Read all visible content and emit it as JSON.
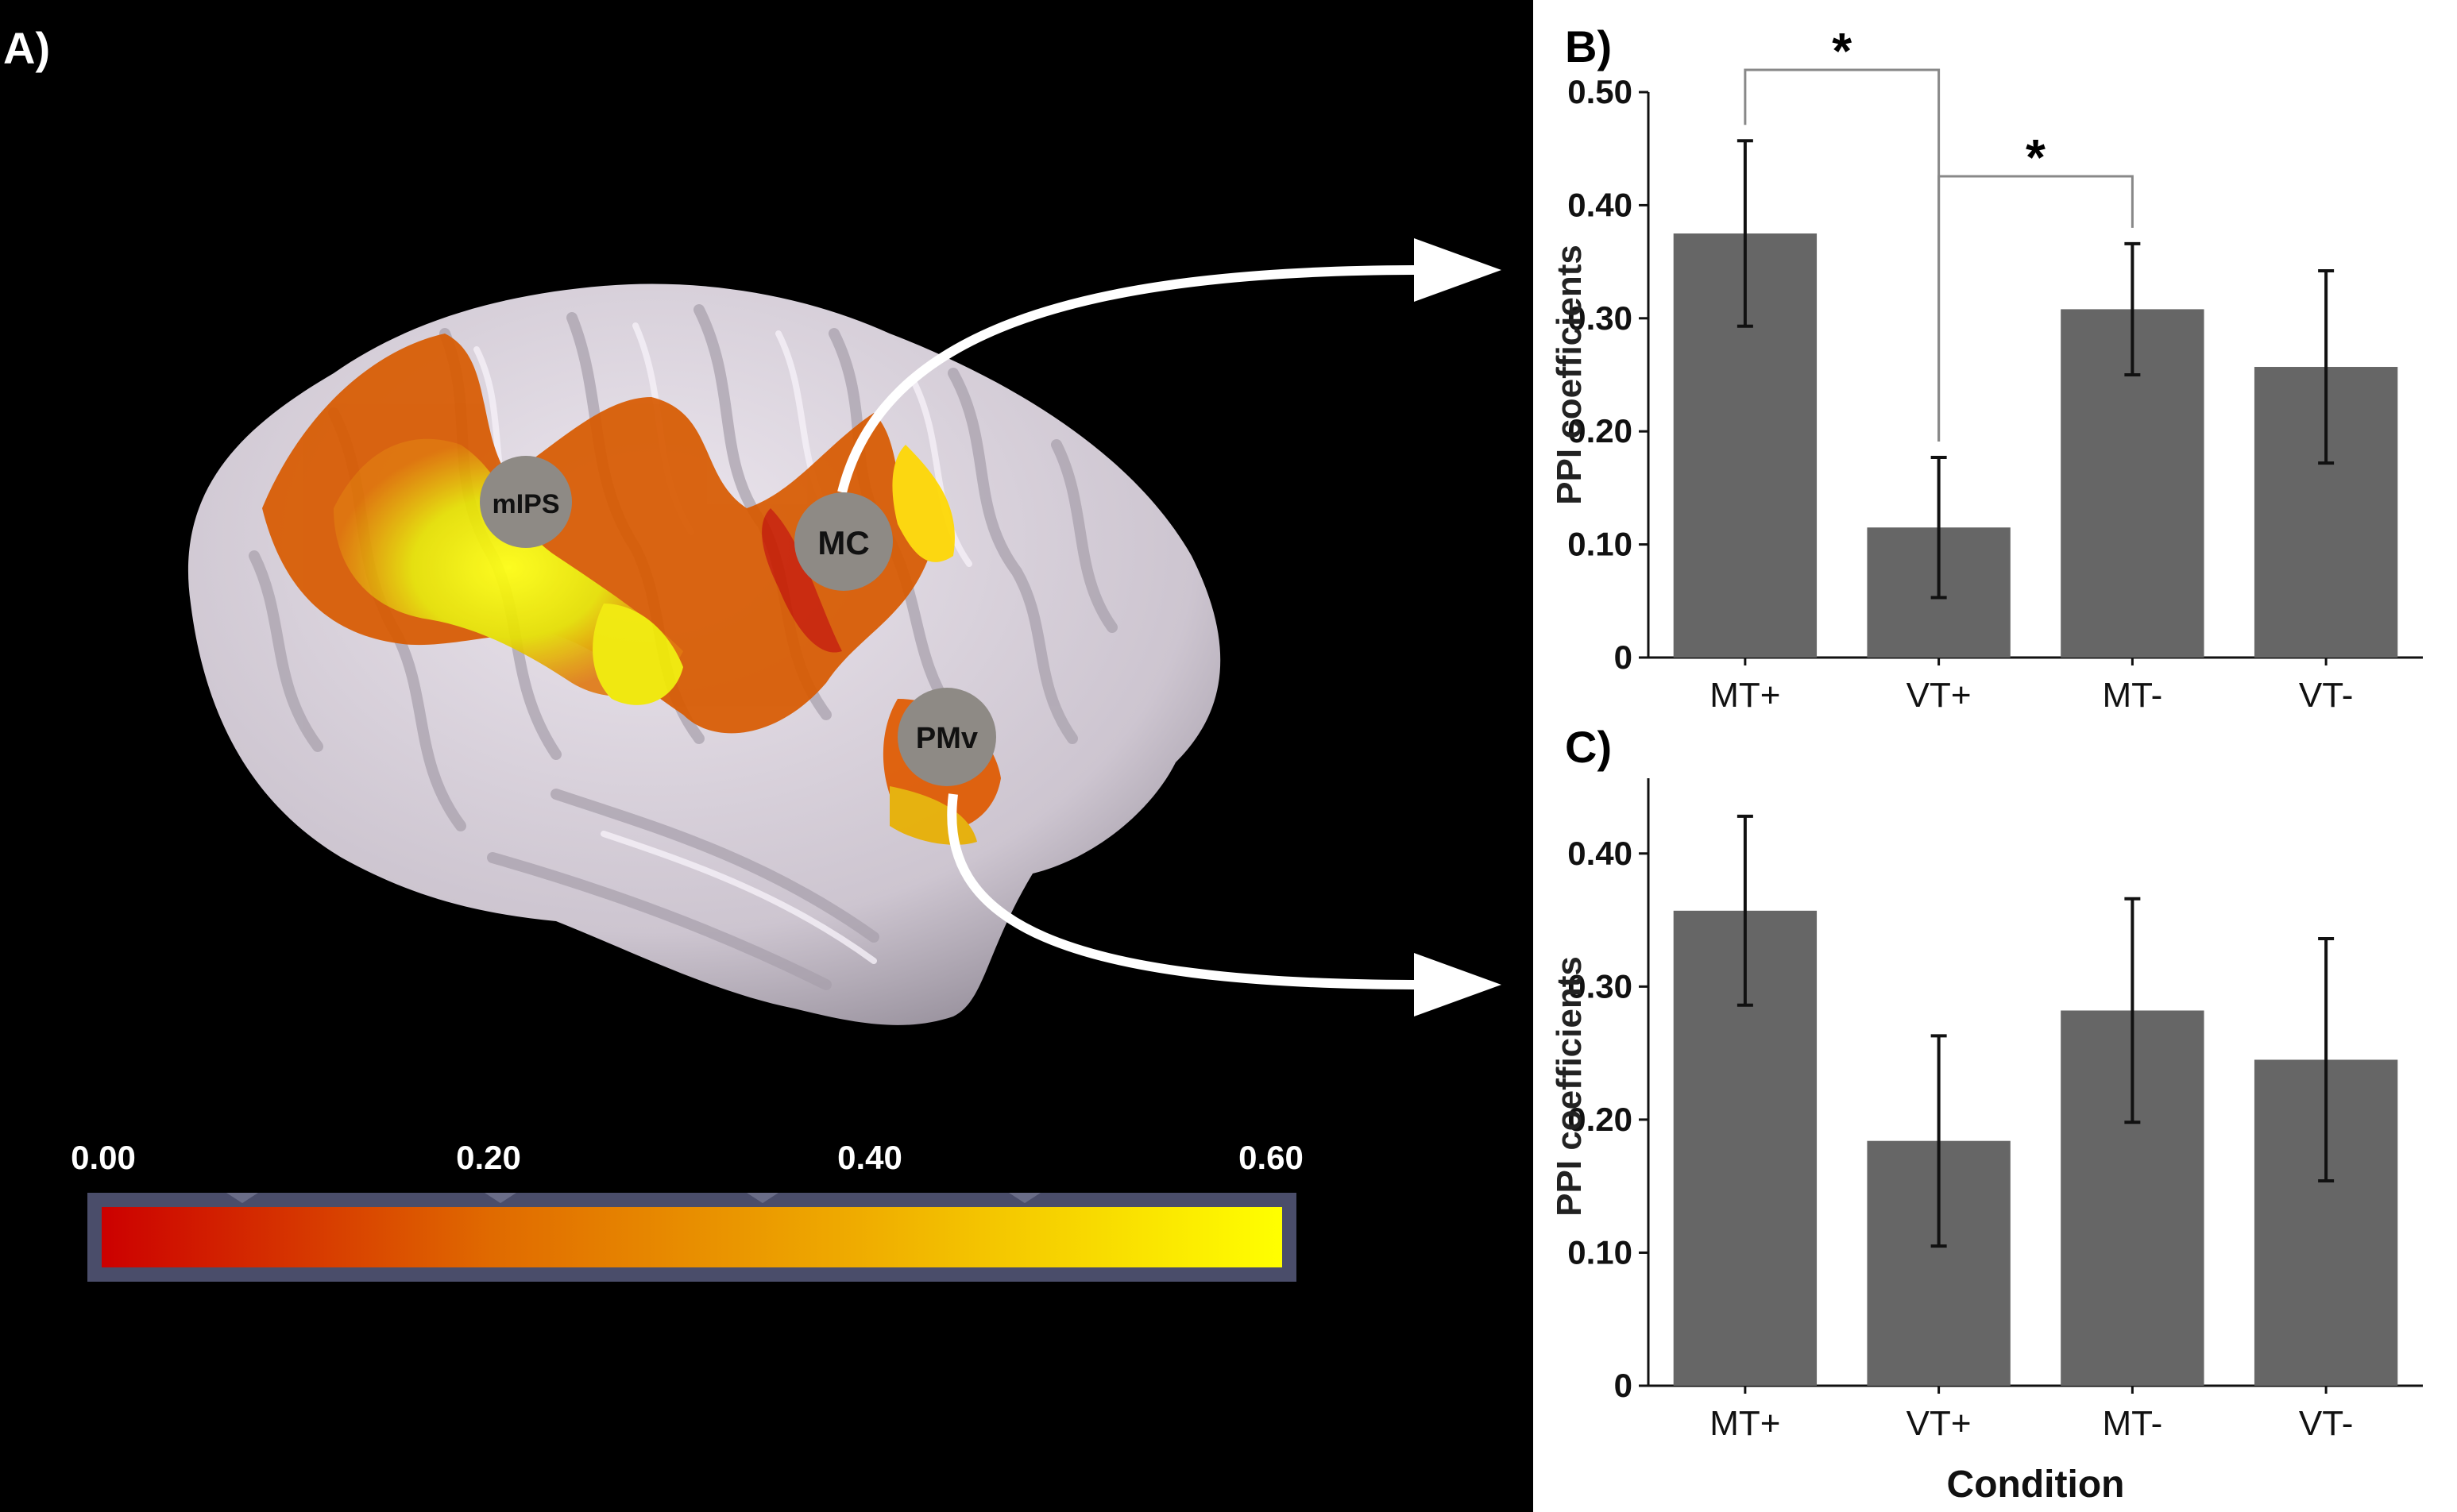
{
  "panel_a": {
    "label": "A)",
    "roi_labels": [
      "mIPS",
      "MC",
      "PMv"
    ],
    "colorbar": {
      "ticks": [
        "0.00",
        "0.20",
        "0.40",
        "0.60"
      ],
      "min": 0.0,
      "max": 0.6,
      "colors": [
        "#cc0000",
        "#e06a00",
        "#f0b000",
        "#ffff00"
      ]
    }
  },
  "chart_data": [
    {
      "panel": "B)",
      "type": "bar",
      "categories": [
        "MT+",
        "VT+",
        "MT-",
        "VT-"
      ],
      "values": [
        0.375,
        0.115,
        0.308,
        0.257
      ],
      "errors": [
        0.082,
        0.062,
        0.058,
        0.085
      ],
      "ylabel": "PPI coefficients",
      "xlabel": "",
      "ylim": [
        0,
        0.5
      ],
      "yticks": [
        0,
        0.1,
        0.2,
        0.3,
        0.4,
        0.5
      ],
      "ytick_labels": [
        "0",
        "0.10",
        "0.20",
        "0.30",
        "0.40",
        "0.50"
      ],
      "bar_color": "#666666",
      "significance": [
        {
          "from": "MT+",
          "to": "VT+",
          "label": "*"
        },
        {
          "from": "VT+",
          "to": "MT-",
          "label": "*"
        }
      ]
    },
    {
      "panel": "C)",
      "type": "bar",
      "categories": [
        "MT+",
        "VT+",
        "MT-",
        "VT-"
      ],
      "values": [
        0.357,
        0.184,
        0.282,
        0.245
      ],
      "errors": [
        0.071,
        0.079,
        0.084,
        0.091
      ],
      "ylabel": "PPI coefficients",
      "xlabel": "Condition",
      "ylim": [
        0,
        0.45
      ],
      "yticks": [
        0,
        0.1,
        0.2,
        0.3,
        0.4
      ],
      "ytick_labels": [
        "0",
        "0.10",
        "0.20",
        "0.30",
        "0.40"
      ],
      "bar_color": "#666666"
    }
  ]
}
